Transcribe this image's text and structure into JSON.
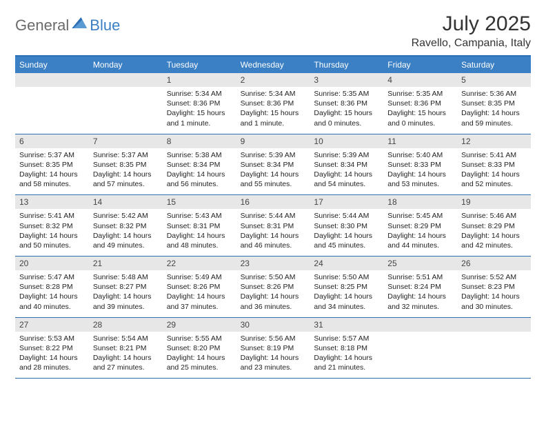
{
  "logo": {
    "part1": "General",
    "part2": "Blue"
  },
  "title": "July 2025",
  "location": "Ravello, Campania, Italy",
  "colors": {
    "header_bg": "#3b7fc4",
    "border": "#2d6fb5",
    "daynum_bg": "#e7e7e7",
    "text": "#222222"
  },
  "day_headers": [
    "Sunday",
    "Monday",
    "Tuesday",
    "Wednesday",
    "Thursday",
    "Friday",
    "Saturday"
  ],
  "weeks": [
    [
      {
        "num": "",
        "sunrise": "",
        "sunset": "",
        "daylight1": "",
        "daylight2": ""
      },
      {
        "num": "",
        "sunrise": "",
        "sunset": "",
        "daylight1": "",
        "daylight2": ""
      },
      {
        "num": "1",
        "sunrise": "Sunrise: 5:34 AM",
        "sunset": "Sunset: 8:36 PM",
        "daylight1": "Daylight: 15 hours",
        "daylight2": "and 1 minute."
      },
      {
        "num": "2",
        "sunrise": "Sunrise: 5:34 AM",
        "sunset": "Sunset: 8:36 PM",
        "daylight1": "Daylight: 15 hours",
        "daylight2": "and 1 minute."
      },
      {
        "num": "3",
        "sunrise": "Sunrise: 5:35 AM",
        "sunset": "Sunset: 8:36 PM",
        "daylight1": "Daylight: 15 hours",
        "daylight2": "and 0 minutes."
      },
      {
        "num": "4",
        "sunrise": "Sunrise: 5:35 AM",
        "sunset": "Sunset: 8:36 PM",
        "daylight1": "Daylight: 15 hours",
        "daylight2": "and 0 minutes."
      },
      {
        "num": "5",
        "sunrise": "Sunrise: 5:36 AM",
        "sunset": "Sunset: 8:35 PM",
        "daylight1": "Daylight: 14 hours",
        "daylight2": "and 59 minutes."
      }
    ],
    [
      {
        "num": "6",
        "sunrise": "Sunrise: 5:37 AM",
        "sunset": "Sunset: 8:35 PM",
        "daylight1": "Daylight: 14 hours",
        "daylight2": "and 58 minutes."
      },
      {
        "num": "7",
        "sunrise": "Sunrise: 5:37 AM",
        "sunset": "Sunset: 8:35 PM",
        "daylight1": "Daylight: 14 hours",
        "daylight2": "and 57 minutes."
      },
      {
        "num": "8",
        "sunrise": "Sunrise: 5:38 AM",
        "sunset": "Sunset: 8:34 PM",
        "daylight1": "Daylight: 14 hours",
        "daylight2": "and 56 minutes."
      },
      {
        "num": "9",
        "sunrise": "Sunrise: 5:39 AM",
        "sunset": "Sunset: 8:34 PM",
        "daylight1": "Daylight: 14 hours",
        "daylight2": "and 55 minutes."
      },
      {
        "num": "10",
        "sunrise": "Sunrise: 5:39 AM",
        "sunset": "Sunset: 8:34 PM",
        "daylight1": "Daylight: 14 hours",
        "daylight2": "and 54 minutes."
      },
      {
        "num": "11",
        "sunrise": "Sunrise: 5:40 AM",
        "sunset": "Sunset: 8:33 PM",
        "daylight1": "Daylight: 14 hours",
        "daylight2": "and 53 minutes."
      },
      {
        "num": "12",
        "sunrise": "Sunrise: 5:41 AM",
        "sunset": "Sunset: 8:33 PM",
        "daylight1": "Daylight: 14 hours",
        "daylight2": "and 52 minutes."
      }
    ],
    [
      {
        "num": "13",
        "sunrise": "Sunrise: 5:41 AM",
        "sunset": "Sunset: 8:32 PM",
        "daylight1": "Daylight: 14 hours",
        "daylight2": "and 50 minutes."
      },
      {
        "num": "14",
        "sunrise": "Sunrise: 5:42 AM",
        "sunset": "Sunset: 8:32 PM",
        "daylight1": "Daylight: 14 hours",
        "daylight2": "and 49 minutes."
      },
      {
        "num": "15",
        "sunrise": "Sunrise: 5:43 AM",
        "sunset": "Sunset: 8:31 PM",
        "daylight1": "Daylight: 14 hours",
        "daylight2": "and 48 minutes."
      },
      {
        "num": "16",
        "sunrise": "Sunrise: 5:44 AM",
        "sunset": "Sunset: 8:31 PM",
        "daylight1": "Daylight: 14 hours",
        "daylight2": "and 46 minutes."
      },
      {
        "num": "17",
        "sunrise": "Sunrise: 5:44 AM",
        "sunset": "Sunset: 8:30 PM",
        "daylight1": "Daylight: 14 hours",
        "daylight2": "and 45 minutes."
      },
      {
        "num": "18",
        "sunrise": "Sunrise: 5:45 AM",
        "sunset": "Sunset: 8:29 PM",
        "daylight1": "Daylight: 14 hours",
        "daylight2": "and 44 minutes."
      },
      {
        "num": "19",
        "sunrise": "Sunrise: 5:46 AM",
        "sunset": "Sunset: 8:29 PM",
        "daylight1": "Daylight: 14 hours",
        "daylight2": "and 42 minutes."
      }
    ],
    [
      {
        "num": "20",
        "sunrise": "Sunrise: 5:47 AM",
        "sunset": "Sunset: 8:28 PM",
        "daylight1": "Daylight: 14 hours",
        "daylight2": "and 40 minutes."
      },
      {
        "num": "21",
        "sunrise": "Sunrise: 5:48 AM",
        "sunset": "Sunset: 8:27 PM",
        "daylight1": "Daylight: 14 hours",
        "daylight2": "and 39 minutes."
      },
      {
        "num": "22",
        "sunrise": "Sunrise: 5:49 AM",
        "sunset": "Sunset: 8:26 PM",
        "daylight1": "Daylight: 14 hours",
        "daylight2": "and 37 minutes."
      },
      {
        "num": "23",
        "sunrise": "Sunrise: 5:50 AM",
        "sunset": "Sunset: 8:26 PM",
        "daylight1": "Daylight: 14 hours",
        "daylight2": "and 36 minutes."
      },
      {
        "num": "24",
        "sunrise": "Sunrise: 5:50 AM",
        "sunset": "Sunset: 8:25 PM",
        "daylight1": "Daylight: 14 hours",
        "daylight2": "and 34 minutes."
      },
      {
        "num": "25",
        "sunrise": "Sunrise: 5:51 AM",
        "sunset": "Sunset: 8:24 PM",
        "daylight1": "Daylight: 14 hours",
        "daylight2": "and 32 minutes."
      },
      {
        "num": "26",
        "sunrise": "Sunrise: 5:52 AM",
        "sunset": "Sunset: 8:23 PM",
        "daylight1": "Daylight: 14 hours",
        "daylight2": "and 30 minutes."
      }
    ],
    [
      {
        "num": "27",
        "sunrise": "Sunrise: 5:53 AM",
        "sunset": "Sunset: 8:22 PM",
        "daylight1": "Daylight: 14 hours",
        "daylight2": "and 28 minutes."
      },
      {
        "num": "28",
        "sunrise": "Sunrise: 5:54 AM",
        "sunset": "Sunset: 8:21 PM",
        "daylight1": "Daylight: 14 hours",
        "daylight2": "and 27 minutes."
      },
      {
        "num": "29",
        "sunrise": "Sunrise: 5:55 AM",
        "sunset": "Sunset: 8:20 PM",
        "daylight1": "Daylight: 14 hours",
        "daylight2": "and 25 minutes."
      },
      {
        "num": "30",
        "sunrise": "Sunrise: 5:56 AM",
        "sunset": "Sunset: 8:19 PM",
        "daylight1": "Daylight: 14 hours",
        "daylight2": "and 23 minutes."
      },
      {
        "num": "31",
        "sunrise": "Sunrise: 5:57 AM",
        "sunset": "Sunset: 8:18 PM",
        "daylight1": "Daylight: 14 hours",
        "daylight2": "and 21 minutes."
      },
      {
        "num": "",
        "sunrise": "",
        "sunset": "",
        "daylight1": "",
        "daylight2": ""
      },
      {
        "num": "",
        "sunrise": "",
        "sunset": "",
        "daylight1": "",
        "daylight2": ""
      }
    ]
  ]
}
